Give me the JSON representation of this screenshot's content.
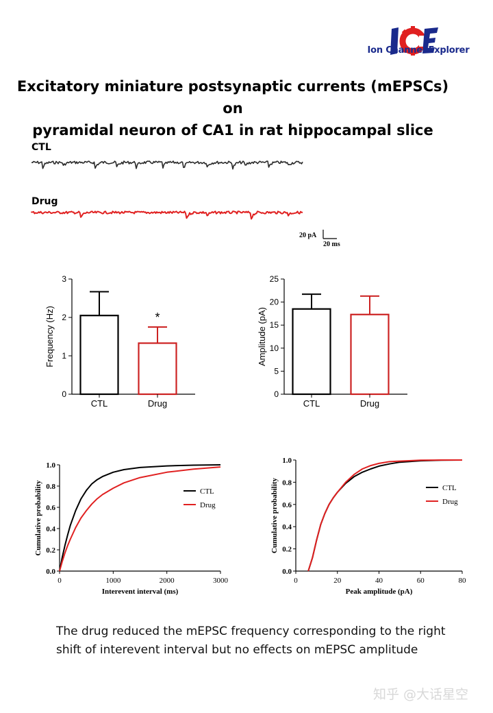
{
  "logo": {
    "mark": "ICE",
    "text": "Ion Channel Explorer",
    "colors": {
      "I": "#1a2a8c",
      "C": "#e02020",
      "E": "#1a2a8c"
    }
  },
  "title_line1": "Excitatory miniature postsynaptic currents (mEPSCs) on",
  "title_line2": "pyramidal neuron of CA1 in rat hippocampal slice",
  "traces": {
    "ctl_label": "CTL",
    "drug_label": "Drug",
    "ctl_color": "#2a2a2a",
    "drug_color": "#e02020",
    "scale_current": "20 pA",
    "scale_time": "20 ms"
  },
  "chart_data": [
    {
      "type": "bar",
      "categories": [
        "CTL",
        "Drug"
      ],
      "values": [
        2.05,
        1.33
      ],
      "errors": [
        0.62,
        0.42
      ],
      "colors": [
        "#000000",
        "#cc2222"
      ],
      "significance": [
        "",
        "*"
      ],
      "xlabel": "",
      "ylabel": "Frequency (Hz)",
      "ylim": [
        0,
        3
      ],
      "yticks": [
        0,
        1,
        2,
        3
      ],
      "grid": false
    },
    {
      "type": "bar",
      "categories": [
        "CTL",
        "Drug"
      ],
      "values": [
        18.5,
        17.3
      ],
      "errors": [
        3.2,
        4.0
      ],
      "colors": [
        "#000000",
        "#cc2222"
      ],
      "significance": [
        "",
        ""
      ],
      "xlabel": "",
      "ylabel": "Amplitude (pA)",
      "ylim": [
        0,
        25
      ],
      "yticks": [
        0,
        5,
        10,
        15,
        20,
        25
      ],
      "grid": false
    },
    {
      "type": "line",
      "xlabel": "Interevent interval (ms)",
      "ylabel": "Cumulative probability",
      "xlim": [
        0,
        3000
      ],
      "ylim": [
        0,
        1.0
      ],
      "xticks": [
        0,
        1000,
        2000,
        3000
      ],
      "yticks": [
        "0.0",
        "0.2",
        "0.4",
        "0.6",
        "0.8",
        "1.0"
      ],
      "legend_position": "right",
      "grid": false,
      "series": [
        {
          "name": "CTL",
          "color": "#000000",
          "x": [
            0,
            50,
            100,
            150,
            200,
            300,
            400,
            500,
            600,
            700,
            800,
            1000,
            1200,
            1500,
            2000,
            2500,
            3000
          ],
          "y": [
            0,
            0.13,
            0.24,
            0.34,
            0.43,
            0.57,
            0.68,
            0.76,
            0.82,
            0.86,
            0.89,
            0.93,
            0.955,
            0.975,
            0.99,
            0.997,
            1.0
          ]
        },
        {
          "name": "Drug",
          "color": "#e02020",
          "x": [
            0,
            50,
            100,
            150,
            200,
            300,
            400,
            500,
            600,
            700,
            800,
            1000,
            1200,
            1500,
            2000,
            2500,
            3000
          ],
          "y": [
            0,
            0.09,
            0.17,
            0.24,
            0.3,
            0.41,
            0.5,
            0.57,
            0.63,
            0.68,
            0.72,
            0.78,
            0.83,
            0.88,
            0.93,
            0.96,
            0.98
          ]
        }
      ]
    },
    {
      "type": "line",
      "xlabel": "Peak amplitude (pA)",
      "ylabel": "Cumulative probability",
      "xlim": [
        0,
        80
      ],
      "ylim": [
        0,
        1.0
      ],
      "xticks": [
        0,
        20,
        40,
        60,
        80
      ],
      "yticks": [
        "0.0",
        "0.2",
        "0.4",
        "0.6",
        "0.8",
        "1.0"
      ],
      "legend_position": "right",
      "grid": false,
      "series": [
        {
          "name": "CTL",
          "color": "#000000",
          "x": [
            6,
            8,
            10,
            12,
            14,
            16,
            18,
            20,
            24,
            28,
            32,
            36,
            40,
            45,
            50,
            60,
            70,
            80
          ],
          "y": [
            0,
            0.12,
            0.28,
            0.42,
            0.52,
            0.6,
            0.66,
            0.71,
            0.79,
            0.85,
            0.89,
            0.92,
            0.945,
            0.965,
            0.98,
            0.993,
            0.998,
            1.0
          ]
        },
        {
          "name": "Drug",
          "color": "#e02020",
          "x": [
            6,
            8,
            10,
            12,
            14,
            16,
            18,
            20,
            24,
            28,
            32,
            36,
            40,
            45,
            50,
            60,
            70,
            80
          ],
          "y": [
            0,
            0.12,
            0.28,
            0.42,
            0.52,
            0.6,
            0.66,
            0.71,
            0.8,
            0.87,
            0.92,
            0.95,
            0.97,
            0.985,
            0.99,
            0.998,
            1.0,
            1.0
          ]
        }
      ]
    }
  ],
  "caption_line1": "The drug reduced the mEPSC frequency corresponding to the right",
  "caption_line2": "shift of interevent interval but no effects on mEPSC amplitude",
  "watermark": "知乎 @大话星空"
}
